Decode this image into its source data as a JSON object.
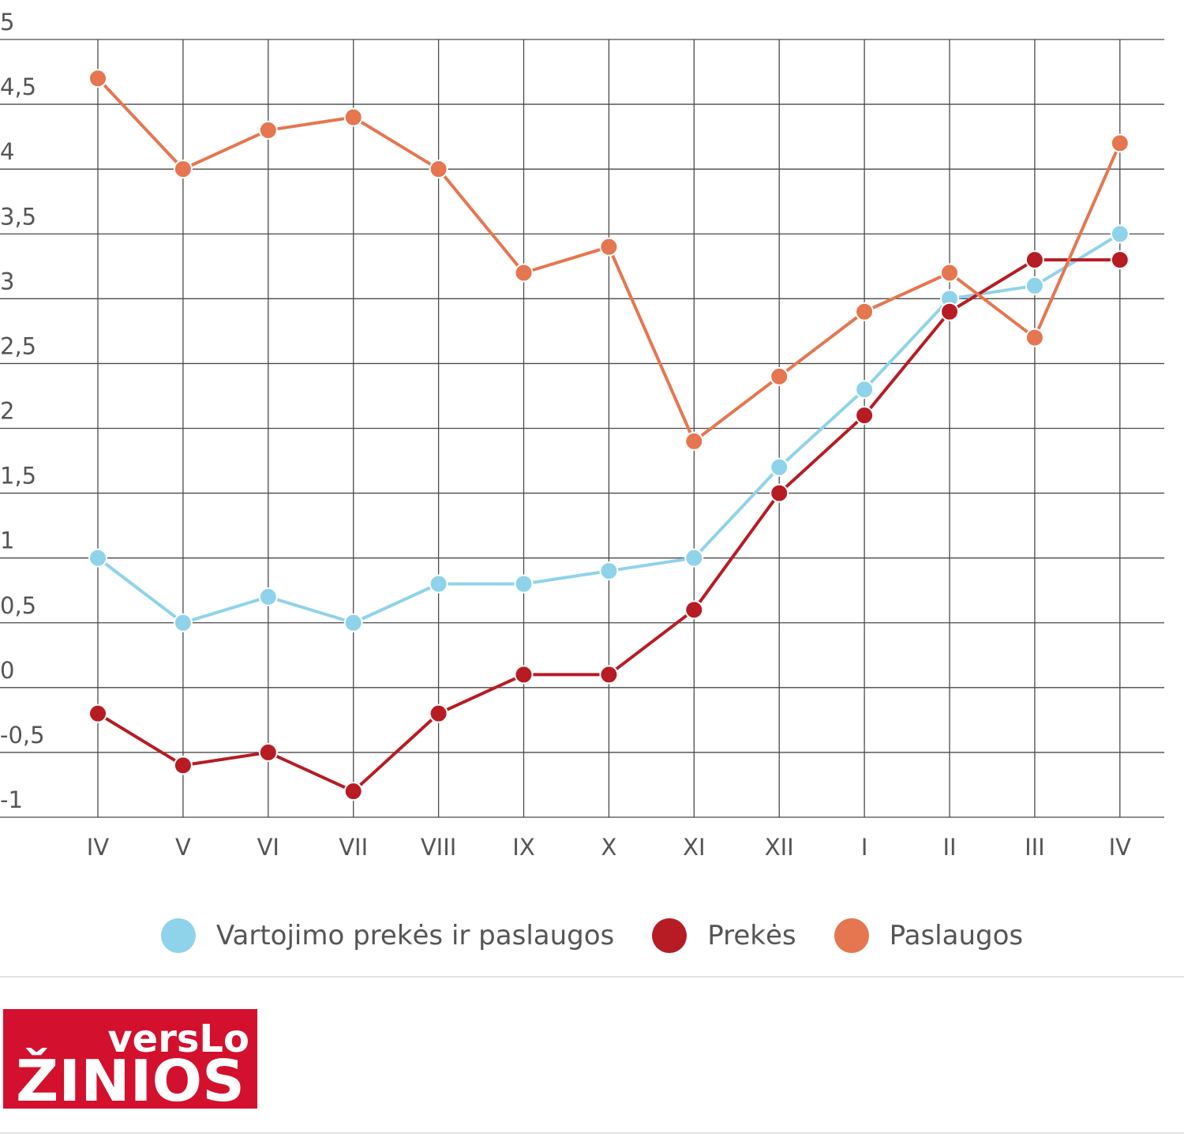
{
  "chart_data": {
    "type": "line",
    "categories": [
      "IV",
      "V",
      "VI",
      "VII",
      "VIII",
      "IX",
      "X",
      "XI",
      "XII",
      "I",
      "II",
      "III",
      "IV"
    ],
    "ylim": [
      -1,
      5
    ],
    "yticks": [
      -1,
      -0.5,
      0,
      0.5,
      1,
      1.5,
      2,
      2.5,
      3,
      3.5,
      4,
      4.5,
      5
    ],
    "ytick_labels": [
      "-1",
      "-0,5",
      "0",
      "0,5",
      "1",
      "1,5",
      "2",
      "2,5",
      "3",
      "3,5",
      "4",
      "4,5",
      "5"
    ],
    "grid": true,
    "legend_position": "bottom",
    "series": [
      {
        "name": "Vartojimo prekės ir paslaugos",
        "color": "#8fd3ea",
        "values": [
          1.0,
          0.5,
          0.7,
          0.5,
          0.8,
          0.8,
          0.9,
          1.0,
          1.7,
          2.3,
          3.0,
          3.1,
          3.5
        ]
      },
      {
        "name": "Prekės",
        "color": "#b71c24",
        "values": [
          -0.2,
          -0.6,
          -0.5,
          -0.8,
          -0.2,
          0.1,
          0.1,
          0.6,
          1.5,
          2.1,
          2.9,
          3.3,
          3.3
        ]
      },
      {
        "name": "Paslaugos",
        "color": "#e57650",
        "values": [
          4.7,
          4.0,
          4.3,
          4.4,
          4.0,
          3.2,
          3.4,
          1.9,
          2.4,
          2.9,
          3.2,
          2.7,
          4.2
        ]
      }
    ]
  },
  "logo": {
    "line1": "versLo",
    "line2": "ŽINIOS",
    "color": "#d3102e"
  }
}
